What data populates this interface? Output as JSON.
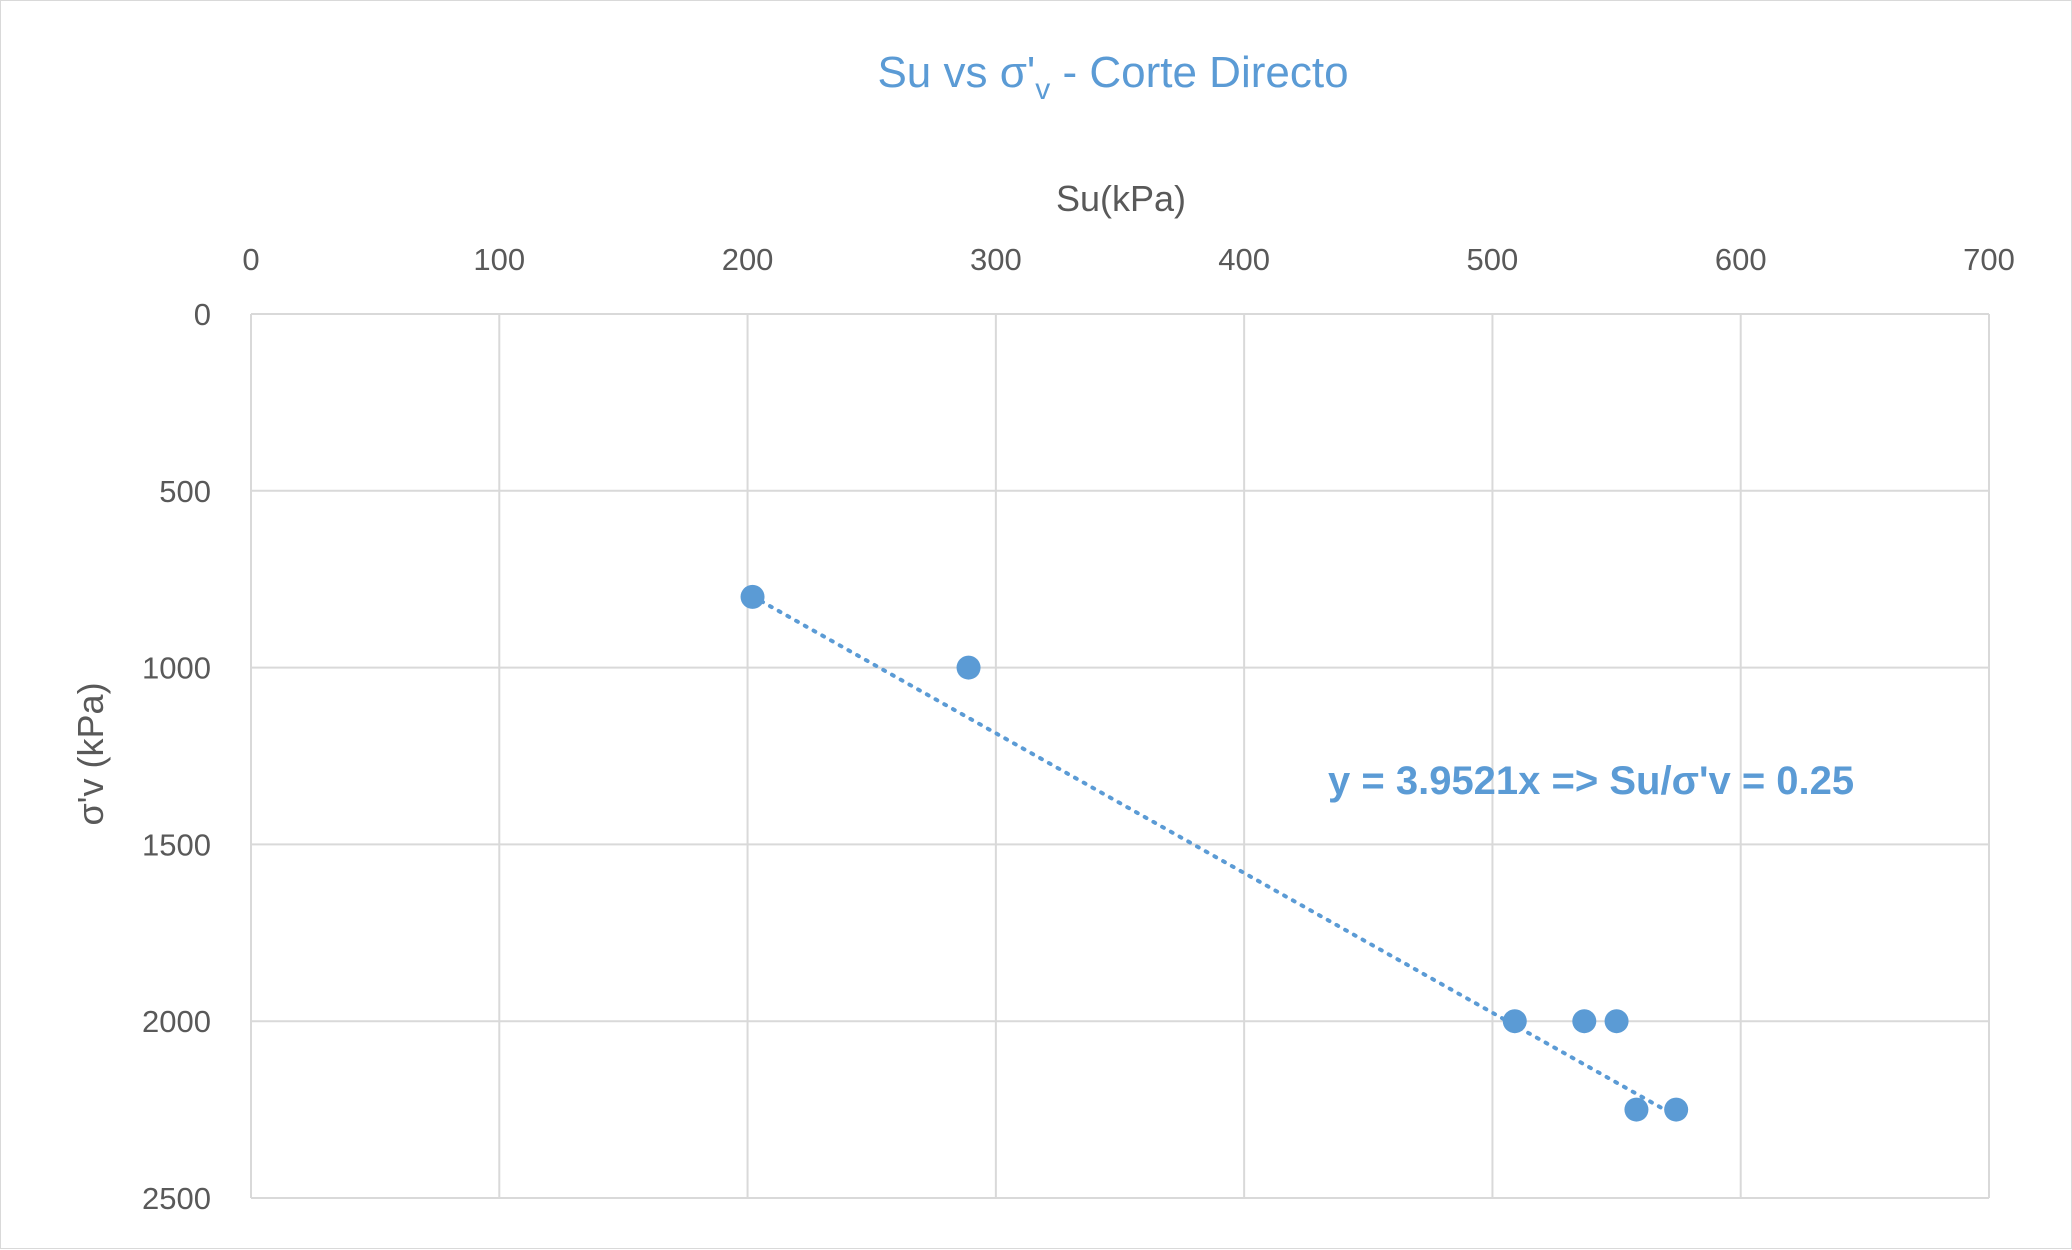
{
  "chart_data": {
    "type": "scatter",
    "title": {
      "main": "Su vs σ'",
      "subscript": "v",
      "suffix": " - Corte Directo"
    },
    "xlabel": "Su(kPa)",
    "ylabel": "σ'v  (kPa)",
    "x_axis_position": "top",
    "y_axis_reversed": true,
    "xlim": [
      0,
      700
    ],
    "ylim": [
      0,
      2500
    ],
    "x_ticks": [
      0,
      100,
      200,
      300,
      400,
      500,
      600,
      700
    ],
    "y_ticks": [
      0,
      500,
      1000,
      1500,
      2000,
      2500
    ],
    "grid": true,
    "series": [
      {
        "x": [
          202,
          289,
          509,
          537,
          550,
          558,
          574
        ],
        "y": [
          800,
          1000,
          2000,
          2000,
          2000,
          2250,
          2250
        ]
      }
    ],
    "trendline": {
      "style": "dotted",
      "slope": 3.9521,
      "intercept": 0,
      "x_range": [
        202,
        574
      ],
      "label": "y = 3.9521x => Su/σ'v = 0.25"
    },
    "colors": {
      "series": "#5b9bd5",
      "title": "#5b9bd5",
      "annotation": "#5b9bd5",
      "grid": "#d9d9d9",
      "text": "#595959"
    }
  }
}
